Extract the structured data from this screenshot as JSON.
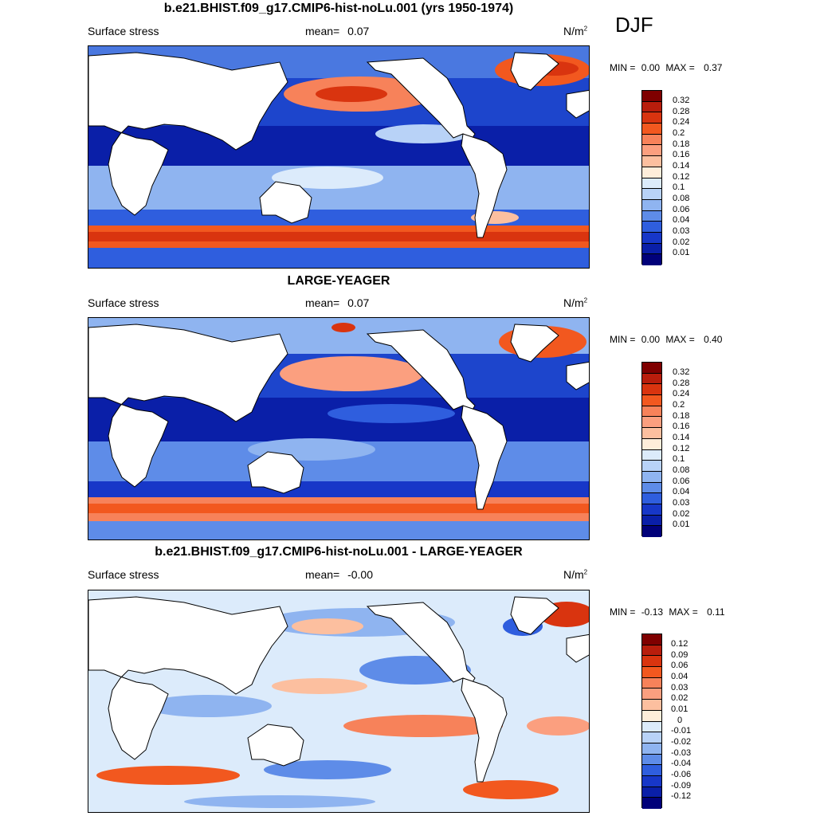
{
  "season": "DJF",
  "units_base": "N/m",
  "units_exp": "2",
  "panels": [
    {
      "title": "b.e21.BHIST.f09_g17.CMIP6-hist-noLu.001 (yrs 1950-1974)",
      "variable": "Surface stress",
      "mean_label": "mean=",
      "mean_value": "0.07",
      "min_label": "MIN =",
      "min_value": "0.00",
      "max_label": "MAX =",
      "max_value": "0.37",
      "colorbar": [
        "0.32",
        "0.28",
        "0.24",
        "0.2",
        "0.18",
        "0.16",
        "0.14",
        "0.12",
        "0.1",
        "0.08",
        "0.06",
        "0.04",
        "0.03",
        "0.02",
        "0.01"
      ]
    },
    {
      "title": "LARGE-YEAGER",
      "variable": "Surface stress",
      "mean_label": "mean=",
      "mean_value": "0.07",
      "min_label": "MIN =",
      "min_value": "0.00",
      "max_label": "MAX =",
      "max_value": "0.40",
      "colorbar": [
        "0.32",
        "0.28",
        "0.24",
        "0.2",
        "0.18",
        "0.16",
        "0.14",
        "0.12",
        "0.1",
        "0.08",
        "0.06",
        "0.04",
        "0.03",
        "0.02",
        "0.01"
      ]
    },
    {
      "title": "b.e21.BHIST.f09_g17.CMIP6-hist-noLu.001 - LARGE-YEAGER",
      "variable": "Surface stress",
      "mean_label": "mean=",
      "mean_value": "-0.00",
      "min_label": "MIN =",
      "min_value": "-0.13",
      "max_label": "MAX =",
      "max_value": "0.11",
      "colorbar": [
        "0.12",
        "0.09",
        "0.06",
        "0.04",
        "0.03",
        "0.02",
        "0.01",
        "0",
        "-0.01",
        "-0.02",
        "-0.03",
        "-0.04",
        "-0.06",
        "-0.09",
        "-0.12"
      ]
    }
  ],
  "palette": [
    "#7f0000",
    "#b81d0c",
    "#d9340f",
    "#f2581f",
    "#f7825a",
    "#fb9f7f",
    "#fcbf9f",
    "#feedda",
    "#dcebfb",
    "#b8d2f7",
    "#8fb4f0",
    "#5e8ce8",
    "#2f5ede",
    "#1737c8",
    "#0a1fa8",
    "#01017a"
  ]
}
